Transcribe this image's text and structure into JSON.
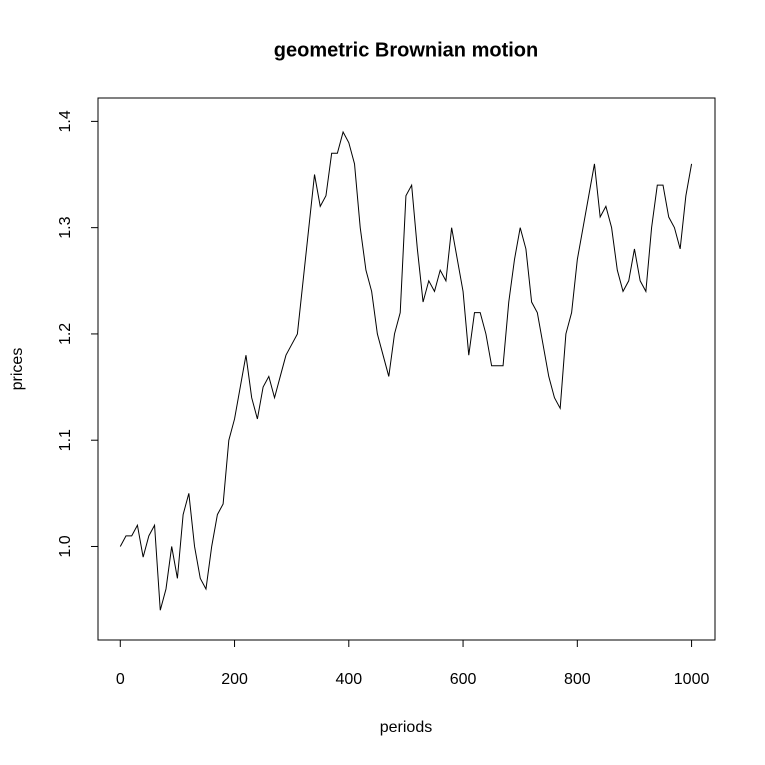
{
  "chart_data": {
    "type": "line",
    "title": "geometric Brownian motion",
    "x_label": "periods",
    "y_label": "prices",
    "x": [
      0,
      10,
      20,
      30,
      40,
      50,
      60,
      70,
      80,
      90,
      100,
      110,
      120,
      130,
      140,
      150,
      160,
      170,
      180,
      190,
      200,
      210,
      220,
      230,
      240,
      250,
      260,
      270,
      280,
      290,
      300,
      310,
      320,
      330,
      340,
      350,
      360,
      370,
      380,
      390,
      400,
      410,
      420,
      430,
      440,
      450,
      460,
      470,
      480,
      490,
      500,
      510,
      520,
      530,
      540,
      550,
      560,
      570,
      580,
      590,
      600,
      610,
      620,
      630,
      640,
      650,
      660,
      670,
      680,
      690,
      700,
      710,
      720,
      730,
      740,
      750,
      760,
      770,
      780,
      790,
      800,
      810,
      820,
      830,
      840,
      850,
      860,
      870,
      880,
      890,
      900,
      910,
      920,
      930,
      940,
      950,
      960,
      970,
      980,
      990,
      1000
    ],
    "series": [
      {
        "name": "prices",
        "color": "#000000",
        "values": [
          1.0,
          1.01,
          1.01,
          1.02,
          0.99,
          1.01,
          1.02,
          0.94,
          0.96,
          1.0,
          0.97,
          1.03,
          1.05,
          1.0,
          0.97,
          0.96,
          1.0,
          1.03,
          1.04,
          1.1,
          1.12,
          1.15,
          1.18,
          1.14,
          1.12,
          1.15,
          1.16,
          1.14,
          1.16,
          1.18,
          1.19,
          1.2,
          1.25,
          1.3,
          1.35,
          1.32,
          1.33,
          1.37,
          1.37,
          1.39,
          1.38,
          1.36,
          1.3,
          1.26,
          1.24,
          1.2,
          1.18,
          1.16,
          1.2,
          1.22,
          1.33,
          1.34,
          1.28,
          1.23,
          1.25,
          1.24,
          1.26,
          1.25,
          1.3,
          1.27,
          1.24,
          1.18,
          1.22,
          1.22,
          1.2,
          1.17,
          1.17,
          1.17,
          1.23,
          1.27,
          1.3,
          1.28,
          1.23,
          1.22,
          1.19,
          1.16,
          1.14,
          1.13,
          1.2,
          1.22,
          1.27,
          1.3,
          1.33,
          1.36,
          1.31,
          1.32,
          1.3,
          1.26,
          1.24,
          1.25,
          1.28,
          1.25,
          1.24,
          1.3,
          1.34,
          1.34,
          1.31,
          1.3,
          1.28,
          1.33,
          1.36
        ]
      }
    ],
    "xlim": [
      -39,
      1041
    ],
    "ylim": [
      0.912,
      1.422
    ],
    "xticks": [
      0,
      200,
      400,
      600,
      800,
      1000
    ],
    "yticks": [
      {
        "value": 1,
        "label": "1.0"
      },
      1.1,
      1.2,
      1.3,
      1.4
    ]
  }
}
